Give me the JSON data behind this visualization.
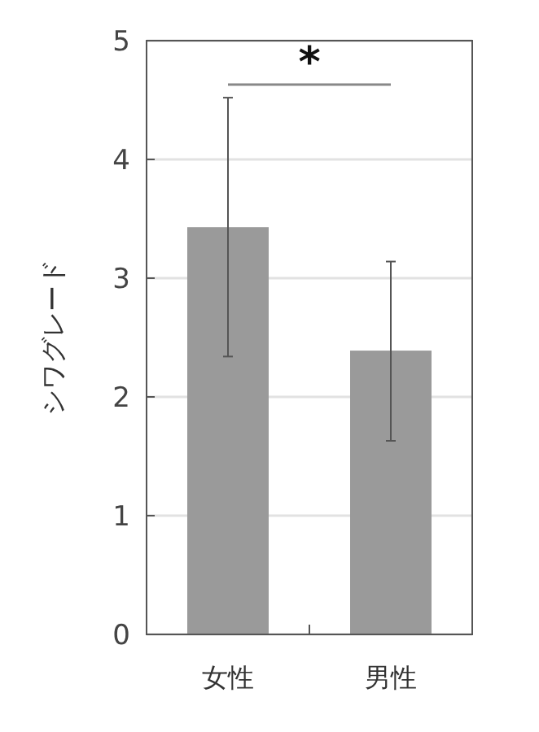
{
  "chart_data": {
    "type": "bar",
    "ylabel": "シワグレード",
    "categories": [
      "女性",
      "男性"
    ],
    "values": [
      3.43,
      2.39
    ],
    "errors": [
      [
        2.34,
        4.52
      ],
      [
        1.63,
        3.14
      ]
    ],
    "color": "#9a9a9a",
    "ylim": [
      0,
      5
    ],
    "yticks": [
      0,
      1,
      2,
      3,
      4,
      5
    ],
    "grid": "y",
    "annotations": [
      "*"
    ]
  }
}
